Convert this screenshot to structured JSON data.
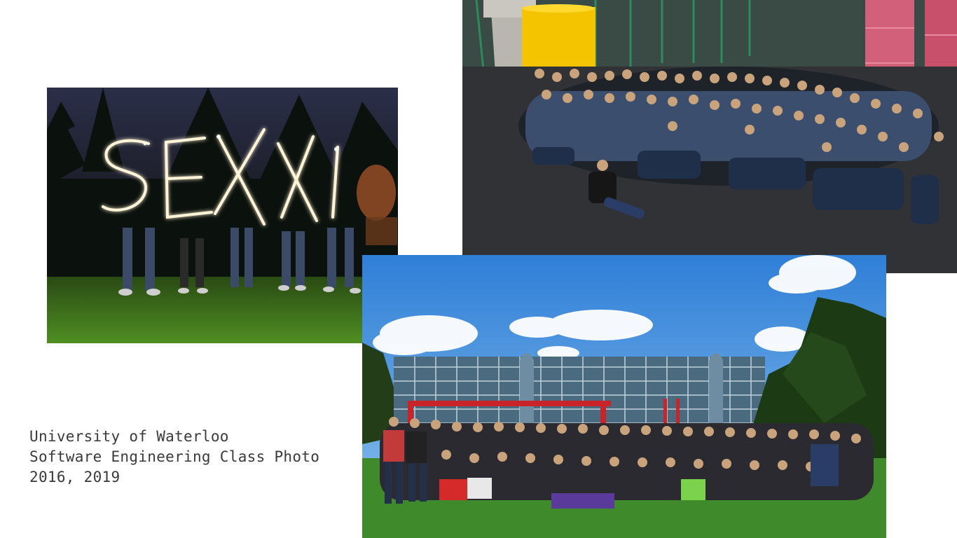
{
  "caption": {
    "line1": "University of Waterloo",
    "line2": "Software Engineering Class Photo",
    "line3": "2016, 2019"
  },
  "photos": {
    "light_painting": {
      "lettering": "SEXXI"
    },
    "indoor_group": {},
    "outdoor_group": {}
  },
  "colors": {
    "background": "#ffffff",
    "caption_text": "#3a3a3a",
    "sky": "#3a86d6",
    "grass": "#3f8a2a",
    "pillar_pink": "#d2607a",
    "pillar_yellow": "#f5c400"
  }
}
